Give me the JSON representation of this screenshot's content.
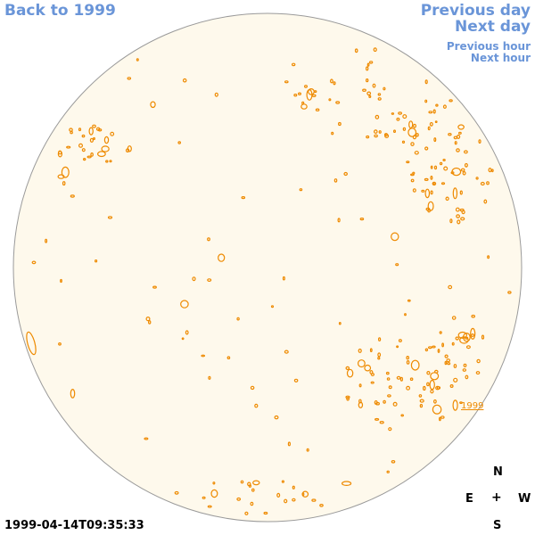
{
  "nav": {
    "back_label": "Back to 1999",
    "prev_day_label": "Previous day",
    "next_day_label": "Next day",
    "prev_hour_label": "Previous hour",
    "next_hour_label": "Next hour"
  },
  "timestamp": "1999-04-14T09:35:33",
  "year_label": "1999",
  "compass": {
    "n": "N",
    "e": "E",
    "w": "W",
    "s": "S",
    "center": "+"
  },
  "colors": {
    "disk_fill": "#fef9ec",
    "disk_stroke": "#9a9a9a",
    "contour": "#ee8a00",
    "nav": "#6a95d8"
  }
}
